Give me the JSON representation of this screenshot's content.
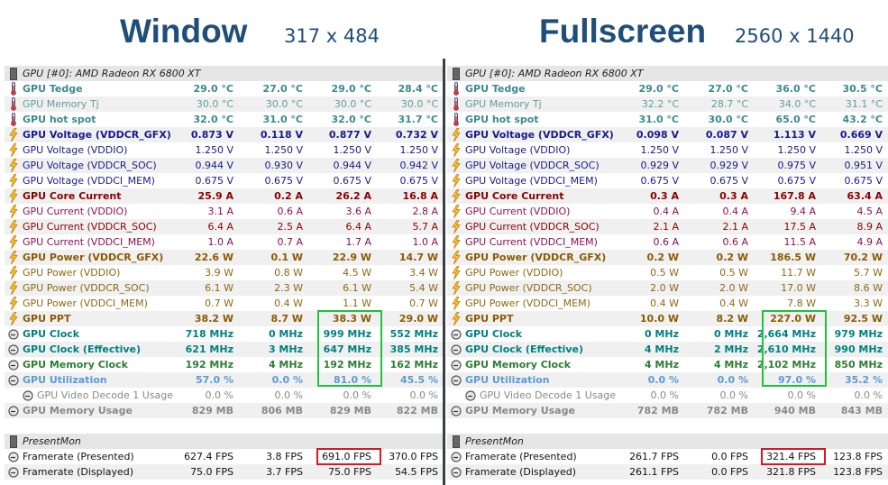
{
  "headings": [
    {
      "title": "Window",
      "resolution": "317 x 484"
    },
    {
      "title": "Fullscreen",
      "resolution": "2560 x 1440"
    }
  ],
  "colors": {
    "highlight_green": "#1ec23c",
    "highlight_red": "#e0141e",
    "title": "#1f4e79"
  },
  "panels": [
    {
      "gpu_header": "GPU [#0]: AMD Radeon RX 6800 XT",
      "presentmon_header": "PresentMon",
      "rows": [
        {
          "label": "GPU Tedge",
          "icon": "thermometer-icon",
          "style": "temp b",
          "values": [
            "29.0 °C",
            "27.0 °C",
            "29.0 °C",
            "28.4 °C"
          ]
        },
        {
          "label": "GPU Memory Tj",
          "icon": "thermometer-icon",
          "style": "temp-light",
          "values": [
            "30.0 °C",
            "30.0 °C",
            "30.0 °C",
            "30.0 °C"
          ]
        },
        {
          "label": "GPU hot spot",
          "icon": "thermometer-icon",
          "style": "temp b",
          "values": [
            "32.0 °C",
            "31.0 °C",
            "32.0 °C",
            "31.7 °C"
          ]
        },
        {
          "label": "GPU Voltage (VDDCR_GFX)",
          "icon": "lightning-icon",
          "style": "volt b",
          "values": [
            "0.873 V",
            "0.118 V",
            "0.877 V",
            "0.732 V"
          ]
        },
        {
          "label": "GPU Voltage (VDDIO)",
          "icon": "lightning-icon",
          "style": "volt",
          "values": [
            "1.250 V",
            "1.250 V",
            "1.250 V",
            "1.250 V"
          ]
        },
        {
          "label": "GPU Voltage (VDDCR_SOC)",
          "icon": "lightning-icon",
          "style": "volt",
          "values": [
            "0.944 V",
            "0.930 V",
            "0.944 V",
            "0.942 V"
          ]
        },
        {
          "label": "GPU Voltage (VDDCI_MEM)",
          "icon": "lightning-icon",
          "style": "volt",
          "values": [
            "0.675 V",
            "0.675 V",
            "0.675 V",
            "0.675 V"
          ]
        },
        {
          "label": "GPU Core Current",
          "icon": "lightning-icon",
          "style": "curr b",
          "values": [
            "25.9 A",
            "0.2 A",
            "26.2 A",
            "16.8 A"
          ]
        },
        {
          "label": "GPU Current (VDDIO)",
          "icon": "lightning-icon",
          "style": "curr-light",
          "values": [
            "3.1 A",
            "0.6 A",
            "3.6 A",
            "2.8 A"
          ]
        },
        {
          "label": "GPU Current (VDDCR_SOC)",
          "icon": "lightning-icon",
          "style": "curr",
          "values": [
            "6.4 A",
            "2.5 A",
            "6.4 A",
            "5.7 A"
          ]
        },
        {
          "label": "GPU Current (VDDCI_MEM)",
          "icon": "lightning-icon",
          "style": "curr-light",
          "values": [
            "1.0 A",
            "0.7 A",
            "1.7 A",
            "1.0 A"
          ]
        },
        {
          "label": "GPU Power (VDDCR_GFX)",
          "icon": "lightning-icon",
          "style": "pow b",
          "values": [
            "22.6 W",
            "0.1 W",
            "22.9 W",
            "14.7 W"
          ]
        },
        {
          "label": "GPU Power (VDDIO)",
          "icon": "lightning-icon",
          "style": "pow-light",
          "values": [
            "3.9 W",
            "0.8 W",
            "4.5 W",
            "3.4 W"
          ]
        },
        {
          "label": "GPU Power (VDDCR_SOC)",
          "icon": "lightning-icon",
          "style": "pow-light",
          "values": [
            "6.1 W",
            "2.3 W",
            "6.1 W",
            "5.4 W"
          ]
        },
        {
          "label": "GPU Power (VDDCI_MEM)",
          "icon": "lightning-icon",
          "style": "pow-light",
          "values": [
            "0.7 W",
            "0.4 W",
            "1.1 W",
            "0.7 W"
          ]
        },
        {
          "label": "GPU PPT",
          "icon": "lightning-icon",
          "style": "pow b",
          "values": [
            "38.2 W",
            "8.7 W",
            "38.3 W",
            "29.0 W"
          ]
        },
        {
          "label": "GPU Clock",
          "icon": "clock-icon",
          "style": "clk b",
          "values": [
            "718 MHz",
            "0 MHz",
            "999 MHz",
            "552 MHz"
          ]
        },
        {
          "label": "GPU Clock (Effective)",
          "icon": "clock-icon",
          "style": "clk b",
          "values": [
            "621 MHz",
            "3 MHz",
            "647 MHz",
            "385 MHz"
          ]
        },
        {
          "label": "GPU Memory Clock",
          "icon": "clock-icon",
          "style": "mclk b",
          "values": [
            "192 MHz",
            "4 MHz",
            "192 MHz",
            "162 MHz"
          ]
        },
        {
          "label": "GPU Utilization",
          "icon": "clock-icon",
          "style": "util b",
          "values": [
            "57.0 %",
            "0.0 %",
            "81.0 %",
            "45.5 %"
          ]
        },
        {
          "label": "GPU Video Decode 1 Usage",
          "icon": "clock-icon",
          "style": "gray indent",
          "values": [
            "0.0 %",
            "0.0 %",
            "0.0 %",
            "0.0 %"
          ]
        },
        {
          "label": "GPU Memory Usage",
          "icon": "clock-icon",
          "style": "gray b",
          "values": [
            "829 MB",
            "806 MB",
            "829 MB",
            "822 MB"
          ]
        }
      ],
      "fps_rows": [
        {
          "label": "Framerate (Presented)",
          "values": [
            "627.4 FPS",
            "3.8 FPS",
            "691.0 FPS",
            "370.0 FPS"
          ]
        },
        {
          "label": "Framerate (Displayed)",
          "values": [
            "75.0 FPS",
            "3.7 FPS",
            "75.0 FPS",
            "54.5 FPS"
          ]
        }
      ]
    },
    {
      "gpu_header": "GPU [#0]: AMD Radeon RX 6800 XT",
      "presentmon_header": "PresentMon",
      "rows": [
        {
          "label": "GPU Tedge",
          "icon": "thermometer-icon",
          "style": "temp b",
          "values": [
            "29.0 °C",
            "27.0 °C",
            "36.0 °C",
            "30.5 °C"
          ]
        },
        {
          "label": "GPU Memory Tj",
          "icon": "thermometer-icon",
          "style": "temp-light",
          "values": [
            "32.2 °C",
            "28.7 °C",
            "34.0 °C",
            "31.1 °C"
          ]
        },
        {
          "label": "GPU hot spot",
          "icon": "thermometer-icon",
          "style": "temp b",
          "values": [
            "31.0 °C",
            "30.0 °C",
            "65.0 °C",
            "43.2 °C"
          ]
        },
        {
          "label": "GPU Voltage (VDDCR_GFX)",
          "icon": "lightning-icon",
          "style": "volt b",
          "values": [
            "0.098 V",
            "0.087 V",
            "1.113 V",
            "0.669 V"
          ]
        },
        {
          "label": "GPU Voltage (VDDIO)",
          "icon": "lightning-icon",
          "style": "volt",
          "values": [
            "1.250 V",
            "1.250 V",
            "1.250 V",
            "1.250 V"
          ]
        },
        {
          "label": "GPU Voltage (VDDCR_SOC)",
          "icon": "lightning-icon",
          "style": "volt",
          "values": [
            "0.929 V",
            "0.929 V",
            "0.975 V",
            "0.951 V"
          ]
        },
        {
          "label": "GPU Voltage (VDDCI_MEM)",
          "icon": "lightning-icon",
          "style": "volt",
          "values": [
            "0.675 V",
            "0.675 V",
            "0.675 V",
            "0.675 V"
          ]
        },
        {
          "label": "GPU Core Current",
          "icon": "lightning-icon",
          "style": "curr b",
          "values": [
            "0.3 A",
            "0.3 A",
            "167.8 A",
            "63.4 A"
          ]
        },
        {
          "label": "GPU Current (VDDIO)",
          "icon": "lightning-icon",
          "style": "curr-light",
          "values": [
            "0.4 A",
            "0.4 A",
            "9.4 A",
            "4.5 A"
          ]
        },
        {
          "label": "GPU Current (VDDCR_SOC)",
          "icon": "lightning-icon",
          "style": "curr",
          "values": [
            "2.1 A",
            "2.1 A",
            "17.5 A",
            "8.9 A"
          ]
        },
        {
          "label": "GPU Current (VDDCI_MEM)",
          "icon": "lightning-icon",
          "style": "curr-light",
          "values": [
            "0.6 A",
            "0.6 A",
            "11.5 A",
            "4.9 A"
          ]
        },
        {
          "label": "GPU Power (VDDCR_GFX)",
          "icon": "lightning-icon",
          "style": "pow b",
          "values": [
            "0.2 W",
            "0.2 W",
            "186.5 W",
            "70.2 W"
          ]
        },
        {
          "label": "GPU Power (VDDIO)",
          "icon": "lightning-icon",
          "style": "pow-light",
          "values": [
            "0.5 W",
            "0.5 W",
            "11.7 W",
            "5.7 W"
          ]
        },
        {
          "label": "GPU Power (VDDCR_SOC)",
          "icon": "lightning-icon",
          "style": "pow-light",
          "values": [
            "2.0 W",
            "2.0 W",
            "17.0 W",
            "8.6 W"
          ]
        },
        {
          "label": "GPU Power (VDDCI_MEM)",
          "icon": "lightning-icon",
          "style": "pow-light",
          "values": [
            "0.4 W",
            "0.4 W",
            "7.8 W",
            "3.3 W"
          ]
        },
        {
          "label": "GPU PPT",
          "icon": "lightning-icon",
          "style": "pow b",
          "values": [
            "10.0 W",
            "8.2 W",
            "227.0 W",
            "92.5 W"
          ]
        },
        {
          "label": "GPU Clock",
          "icon": "clock-icon",
          "style": "clk b",
          "values": [
            "0 MHz",
            "0 MHz",
            "2,664 MHz",
            "979 MHz"
          ]
        },
        {
          "label": "GPU Clock (Effective)",
          "icon": "clock-icon",
          "style": "clk b",
          "values": [
            "4 MHz",
            "2 MHz",
            "2,610 MHz",
            "990 MHz"
          ]
        },
        {
          "label": "GPU Memory Clock",
          "icon": "clock-icon",
          "style": "mclk b",
          "values": [
            "4 MHz",
            "4 MHz",
            "2,102 MHz",
            "850 MHz"
          ]
        },
        {
          "label": "GPU Utilization",
          "icon": "clock-icon",
          "style": "util b",
          "values": [
            "0.0 %",
            "0.0 %",
            "97.0 %",
            "35.2 %"
          ]
        },
        {
          "label": "GPU Video Decode 1 Usage",
          "icon": "clock-icon",
          "style": "gray indent",
          "values": [
            "0.0 %",
            "0.0 %",
            "0.0 %",
            "0.0 %"
          ]
        },
        {
          "label": "GPU Memory Usage",
          "icon": "clock-icon",
          "style": "gray b",
          "values": [
            "782 MB",
            "782 MB",
            "940 MB",
            "843 MB"
          ]
        }
      ],
      "fps_rows": [
        {
          "label": "Framerate (Presented)",
          "values": [
            "261.7 FPS",
            "0.0 FPS",
            "321.4 FPS",
            "123.8 FPS"
          ]
        },
        {
          "label": "Framerate (Displayed)",
          "values": [
            "261.1 FPS",
            "0.0 FPS",
            "321.8 FPS",
            "123.8 FPS"
          ]
        }
      ]
    }
  ]
}
